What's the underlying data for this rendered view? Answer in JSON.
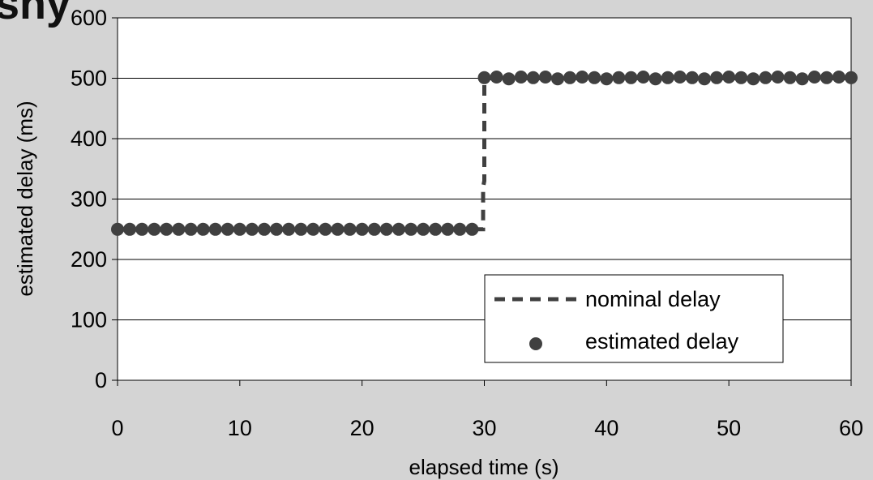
{
  "header_fragment": "shy",
  "chart_data": {
    "type": "line",
    "xlabel": "elapsed time (s)",
    "ylabel": "estimated delay (ms)",
    "xlim": [
      0,
      60
    ],
    "ylim": [
      0,
      600
    ],
    "x_ticks": [
      0,
      10,
      20,
      30,
      40,
      50,
      60
    ],
    "y_ticks": [
      0,
      100,
      200,
      300,
      400,
      500,
      600
    ],
    "grid": "horizontal",
    "legend_position": "bottom-right",
    "series": [
      {
        "name": "nominal delay",
        "style": "dashed-line",
        "color": "#404040",
        "x": [
          0,
          29.9,
          29.9,
          30,
          30,
          60
        ],
        "y": [
          250,
          250,
          320,
          330,
          500,
          500
        ]
      },
      {
        "name": "estimated delay",
        "style": "markers",
        "color": "#404040",
        "x": [
          0,
          1,
          2,
          3,
          4,
          5,
          6,
          7,
          8,
          9,
          10,
          11,
          12,
          13,
          14,
          15,
          16,
          17,
          18,
          19,
          20,
          21,
          22,
          23,
          24,
          25,
          26,
          27,
          28,
          29,
          30,
          31,
          32,
          33,
          34,
          35,
          36,
          37,
          38,
          39,
          40,
          41,
          42,
          43,
          44,
          45,
          46,
          47,
          48,
          49,
          50,
          51,
          52,
          53,
          54,
          55,
          56,
          57,
          58,
          59,
          60
        ],
        "y": [
          250,
          250,
          250,
          250,
          250,
          250,
          250,
          250,
          250,
          250,
          250,
          250,
          250,
          250,
          250,
          250,
          250,
          250,
          250,
          250,
          250,
          250,
          250,
          250,
          250,
          250,
          250,
          250,
          250,
          250,
          501,
          502,
          499,
          502,
          501,
          502,
          499,
          501,
          502,
          501,
          499,
          501,
          501,
          502,
          499,
          501,
          502,
          501,
          499,
          501,
          502,
          501,
          499,
          501,
          502,
          501,
          499,
          502,
          501,
          502,
          501
        ]
      }
    ]
  }
}
